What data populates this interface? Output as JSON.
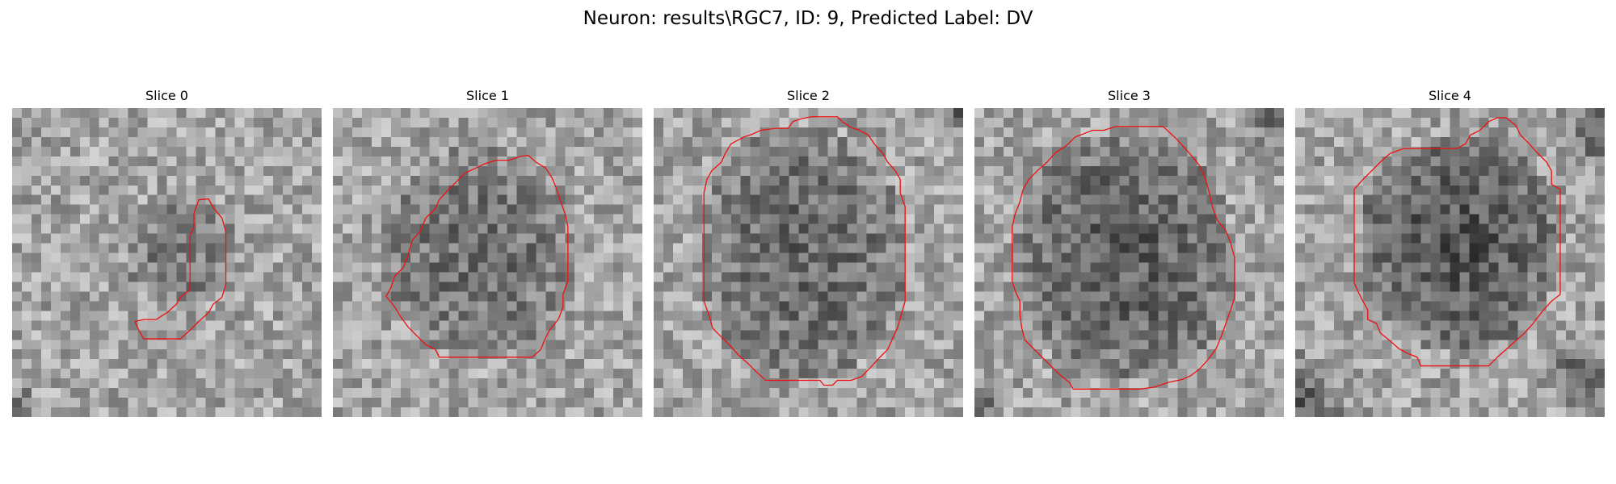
{
  "figure": {
    "title": "Neuron: results\\RGC7, ID: 9, Predicted Label: DV"
  },
  "colors": {
    "contour": "#ee1111",
    "background": "#ffffff",
    "colormap": "grayscale"
  },
  "panels": [
    {
      "title": "Slice 0"
    },
    {
      "title": "Slice 1"
    },
    {
      "title": "Slice 2"
    },
    {
      "title": "Slice 3"
    },
    {
      "title": "Slice 4"
    }
  ]
}
